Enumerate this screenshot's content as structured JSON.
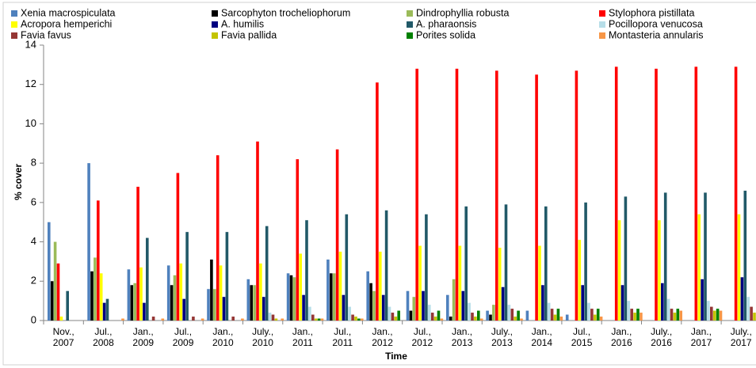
{
  "chart_data": {
    "type": "bar",
    "ylabel": "% cover",
    "xlabel": "Time",
    "categories": [
      "Nov., 2007",
      "Jul., 2008",
      "Jan., 2009",
      "Jul., 2009",
      "Jan., 2010",
      "July., 2010",
      "Jan., 2011",
      "Jul., 2011",
      "Jan., 2012",
      "Jul., 2012",
      "Jan., 2013",
      "July., 2013",
      "Jan., 2014",
      "Jul., 2015",
      "Jan., 2016",
      "July., 2016",
      "Jan., 2017",
      "July., 2017"
    ],
    "ylim": [
      0,
      14
    ],
    "yticks": [
      0,
      2,
      4,
      6,
      8,
      10,
      12,
      14
    ],
    "series": [
      {
        "name": "Xenia macrospiculata",
        "color": "#4f81bd",
        "values": [
          5,
          8,
          2.6,
          2.8,
          1.6,
          2.1,
          2.4,
          3.1,
          2.5,
          1.5,
          1.3,
          0.5,
          0.5,
          0.3,
          0,
          0,
          0,
          0
        ]
      },
      {
        "name": "Sarcophyton trocheliophorum",
        "color": "#000000",
        "values": [
          2,
          2.5,
          1.8,
          1.8,
          3.1,
          1.8,
          2.3,
          2.4,
          1.9,
          0.5,
          0.2,
          0.3,
          0,
          0,
          0,
          0,
          0,
          0
        ]
      },
      {
        "name": "Dindrophyllia robusta",
        "color": "#9bbb59",
        "values": [
          4,
          3.2,
          1.9,
          2.3,
          1.6,
          1.8,
          2.2,
          2.4,
          1.5,
          1.2,
          2.1,
          0.8,
          0,
          0,
          0,
          0,
          0,
          0
        ]
      },
      {
        "name": "Stylophora pistillata",
        "color": "#ff0000",
        "values": [
          2.9,
          6.1,
          6.8,
          7.5,
          8.4,
          9.1,
          8.2,
          8.7,
          12.1,
          12.8,
          12.8,
          12.7,
          12.5,
          12.7,
          12.9,
          12.8,
          12.9,
          12.9
        ]
      },
      {
        "name": "Acropora hemperichi",
        "color": "#ffff00",
        "values": [
          0.2,
          2.4,
          2.7,
          2.9,
          2.8,
          2.9,
          3.4,
          3.5,
          3.5,
          3.8,
          3.8,
          3.7,
          3.8,
          4.1,
          5.1,
          5.1,
          5.4,
          5.4
        ]
      },
      {
        "name": "A. humilis",
        "color": "#000080",
        "values": [
          0,
          0.9,
          0.9,
          1.1,
          1.2,
          1.2,
          1.3,
          1.3,
          1.3,
          1.5,
          1.5,
          1.7,
          1.8,
          1.8,
          1.8,
          1.9,
          2.1,
          2.2
        ]
      },
      {
        "name": "A. pharaonsis",
        "color": "#215968",
        "values": [
          1.5,
          1.1,
          4.2,
          4.5,
          4.5,
          4.8,
          5.1,
          5.4,
          5.6,
          5.4,
          5.8,
          5.9,
          5.8,
          6,
          6.3,
          6.5,
          6.5,
          6.6
        ]
      },
      {
        "name": "Pocillopora venucosa",
        "color": "#b7dee8",
        "values": [
          0,
          0,
          0,
          0,
          0,
          0.4,
          0.7,
          0.7,
          0.7,
          0.8,
          0.9,
          0.8,
          0.9,
          0.9,
          1,
          1.1,
          1,
          1.2
        ]
      },
      {
        "name": "Favia favus",
        "color": "#953735",
        "values": [
          0,
          0,
          0.2,
          0.2,
          0.2,
          0.3,
          0.3,
          0.3,
          0.4,
          0.4,
          0.4,
          0.6,
          0.6,
          0.6,
          0.6,
          0.6,
          0.7,
          0.7
        ]
      },
      {
        "name": "Favia pallida",
        "color": "#c4c400",
        "values": [
          0,
          0,
          0,
          0,
          0,
          0.1,
          0.1,
          0.2,
          0.2,
          0.2,
          0.2,
          0.2,
          0.3,
          0.3,
          0.4,
          0.4,
          0.5,
          0.4
        ]
      },
      {
        "name": "Porites solida",
        "color": "#008000",
        "values": [
          0,
          0,
          0,
          0,
          0,
          0,
          0.1,
          0.1,
          0.5,
          0.5,
          0.5,
          0.5,
          0.6,
          0.6,
          0.6,
          0.6,
          0.6,
          0
        ]
      },
      {
        "name": "Montasteria annularis",
        "color": "#f79646",
        "values": [
          0,
          0.1,
          0.1,
          0.1,
          0.1,
          0.1,
          0.1,
          0.1,
          0,
          0.1,
          0.1,
          0.1,
          0.2,
          0.2,
          0.4,
          0.5,
          0.5,
          0
        ]
      }
    ]
  }
}
